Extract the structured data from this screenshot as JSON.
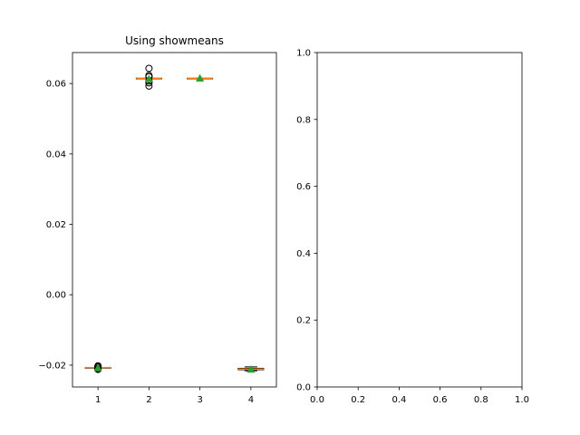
{
  "chart_data": [
    {
      "type": "box",
      "title": "Using showmeans",
      "xlabel": "",
      "ylabel": "",
      "categories": [
        "1",
        "2",
        "3",
        "4"
      ],
      "ylim": [
        -0.0262,
        0.0688
      ],
      "yticks": [
        -0.02,
        0.0,
        0.02,
        0.04,
        0.06
      ],
      "ytick_labels": [
        "−0.02",
        "0.00",
        "0.02",
        "0.04",
        "0.06"
      ],
      "boxes": [
        {
          "label": "1",
          "whislo": -0.0207,
          "q1": -0.0207,
          "med": -0.0207,
          "q3": -0.0207,
          "whishi": -0.0207,
          "mean": -0.0208,
          "fliers": [
            -0.0202,
            -0.0204,
            -0.0206,
            -0.021,
            -0.0212
          ]
        },
        {
          "label": "2",
          "whislo": 0.0615,
          "q1": 0.0615,
          "med": 0.0615,
          "q3": 0.0615,
          "whishi": 0.0615,
          "mean": 0.0613,
          "fliers": [
            0.0643,
            0.0623,
            0.0619,
            0.0607,
            0.0602,
            0.0593
          ]
        },
        {
          "label": "3",
          "whislo": 0.0615,
          "q1": 0.0615,
          "med": 0.0615,
          "q3": 0.0615,
          "whishi": 0.0615,
          "mean": 0.0615,
          "fliers": []
        },
        {
          "label": "4",
          "whislo": -0.0216,
          "q1": -0.0213,
          "med": -0.0211,
          "q3": -0.0209,
          "whishi": -0.0205,
          "mean": -0.0212,
          "fliers": []
        }
      ],
      "colors": {
        "box": "#000000",
        "median": "#ff7f0e",
        "mean": "#2ca02c",
        "flier": "#000000"
      },
      "grid": false
    },
    {
      "type": "scatter",
      "title": "",
      "xlabel": "",
      "ylabel": "",
      "xlim": [
        0.0,
        1.0
      ],
      "ylim": [
        0.0,
        1.0
      ],
      "xticks": [
        0.0,
        0.2,
        0.4,
        0.6,
        0.8,
        1.0
      ],
      "xtick_labels": [
        "0.0",
        "0.2",
        "0.4",
        "0.6",
        "0.8",
        "1.0"
      ],
      "yticks": [
        0.0,
        0.2,
        0.4,
        0.6,
        0.8,
        1.0
      ],
      "ytick_labels": [
        "0.0",
        "0.2",
        "0.4",
        "0.6",
        "0.8",
        "1.0"
      ],
      "series": [],
      "grid": false
    }
  ]
}
